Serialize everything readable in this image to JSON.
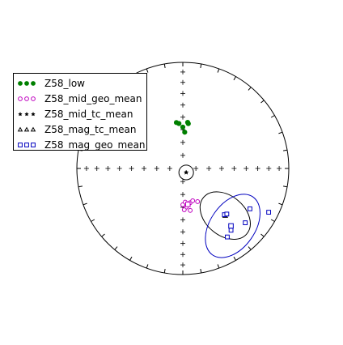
{
  "chart_data": {
    "type": "scatter",
    "subtype": "equal-area stereonet (lower hemisphere)",
    "title": "",
    "grid": false,
    "legend_position": "upper-left",
    "primitive_ticks_deg": 10,
    "cross_ticks_deg": 10,
    "series": [
      {
        "name": "Z58_low",
        "marker": "filled-circle",
        "color": "#008000",
        "points": [
          {
            "dec": 3,
            "inc": 62
          },
          {
            "dec": 0,
            "inc": 58
          },
          {
            "dec": 355,
            "inc": 55
          },
          {
            "dec": 352,
            "inc": 54
          },
          {
            "dec": 7,
            "inc": 55
          },
          {
            "dec": 6,
            "inc": 54
          }
        ]
      },
      {
        "name": "Z58_mid_geo_mean",
        "marker": "open-circle",
        "color": "#bf00bf",
        "mean": {
          "dec": 172,
          "inc": 62,
          "marker": "open-square"
        },
        "points": [
          {
            "dec": 175,
            "inc": 60
          },
          {
            "dec": 178,
            "inc": 58
          },
          {
            "dec": 168,
            "inc": 63
          },
          {
            "dec": 163,
            "inc": 64
          },
          {
            "dec": 180,
            "inc": 62
          },
          {
            "dec": 170,
            "inc": 57
          },
          {
            "dec": 156,
            "inc": 62
          },
          {
            "dec": 176,
            "inc": 64
          }
        ]
      },
      {
        "name": "Z58_mid_tc_mean",
        "marker": "star",
        "color": "#000000",
        "mean": {
          "dec": 140,
          "inc": 86,
          "marker": "star"
        },
        "circle_a95": 4
      },
      {
        "name": "Z58_mag_tc_mean",
        "marker": "open-triangle",
        "color": "#000000",
        "mean": {
          "dec": 138,
          "inc": 40,
          "marker": "open-triangle"
        },
        "ellipse": {
          "cdec": 138,
          "cinc": 40,
          "r1": 12,
          "r2": 8.4,
          "tilt": 40
        }
      },
      {
        "name": "Z58_mag_geo_mean",
        "marker": "open-square",
        "color": "#0000bf",
        "mean": {
          "dec": 140,
          "inc": 30,
          "marker": "open-square"
        },
        "points": [
          {
            "dec": 138,
            "inc": 41
          },
          {
            "dec": 136,
            "inc": 40
          },
          {
            "dec": 131,
            "inc": 23
          },
          {
            "dec": 121,
            "inc": 27
          },
          {
            "dec": 147,
            "inc": 24
          },
          {
            "dec": 142,
            "inc": 27
          },
          {
            "dec": 117,
            "inc": 10
          }
        ],
        "ellipse": {
          "cdec": 139,
          "cinc": 29,
          "r1": 15,
          "r2": 9.5,
          "tilt": 125
        }
      }
    ]
  }
}
